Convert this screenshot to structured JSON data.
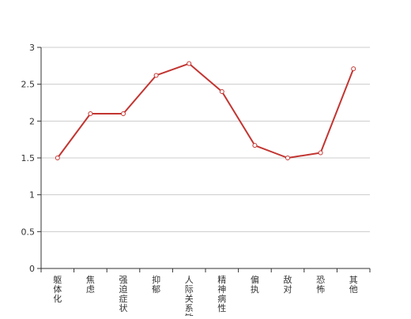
{
  "chart_data": {
    "type": "line",
    "categories": [
      "躯体化",
      "焦虑",
      "强迫症状",
      "抑郁",
      "人际关系敏感",
      "精神病性",
      "偏执",
      "敌对",
      "恐怖",
      "其他"
    ],
    "series": [
      {
        "values": [
          1.5,
          2.1,
          2.1,
          2.62,
          2.78,
          2.4,
          1.67,
          1.5,
          1.57,
          2.71
        ]
      }
    ],
    "ylim": [
      0,
      3
    ],
    "yticks": [
      0,
      0.5,
      1,
      1.5,
      2,
      2.5,
      3
    ],
    "ytick_labels": [
      "0",
      "0.5",
      "1",
      "1.5",
      "2",
      "2.5",
      "3"
    ],
    "grid": true,
    "colors": {
      "line": "#c23531",
      "grid": "#cccccc",
      "axis": "#333333"
    }
  }
}
